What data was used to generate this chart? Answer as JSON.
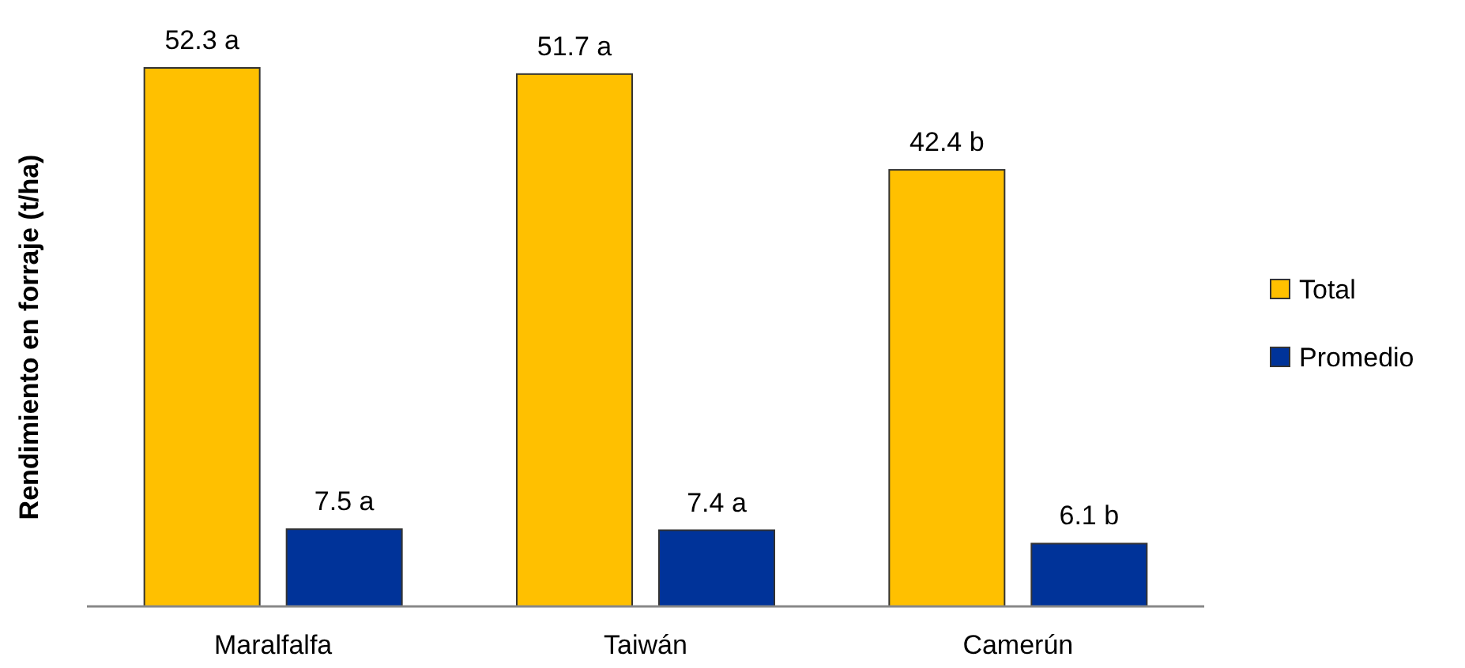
{
  "chart_data": {
    "type": "bar",
    "ylabel": "Rendimiento en forraje (t/ha)",
    "categories": [
      "Maralfalfa",
      "Taiwán",
      "Camerún"
    ],
    "legend": "right",
    "series": [
      {
        "name": "Total",
        "color": "#ffc000",
        "values": [
          52.3,
          51.7,
          42.4
        ],
        "value_labels": [
          "52.3 a",
          "51.7 a",
          "42.4 b"
        ]
      },
      {
        "name": "Promedio",
        "color": "#003399",
        "values": [
          7.5,
          7.4,
          6.1
        ],
        "value_labels": [
          "7.5 a",
          "7.4 a",
          "6.1 b"
        ]
      }
    ]
  }
}
